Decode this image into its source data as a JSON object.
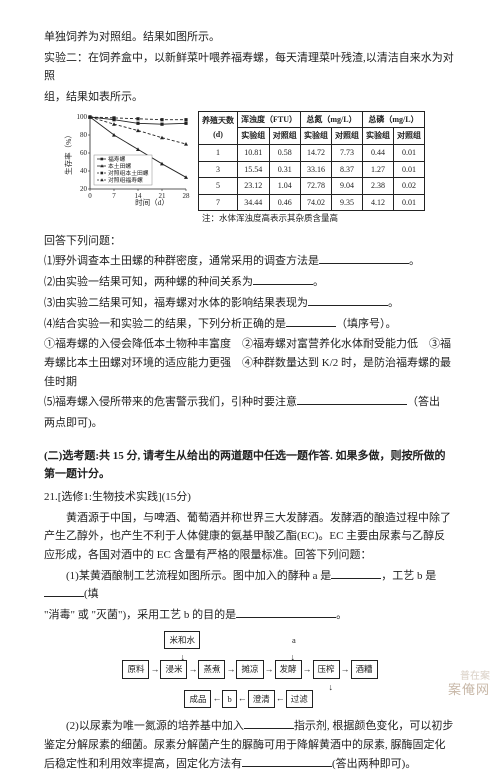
{
  "intro": {
    "line1": "单独饲养为对照组。结果如图所示。",
    "line2a": "实验二：在饲养盒中，以新鲜菜叶喂养福寿螺，每天清理菜叶残渣,以清洁自来水为对照",
    "line2b": "组，结果如表所示。"
  },
  "chart": {
    "ylabel": "生存率（%）",
    "xlabel": "时间（d）",
    "xticks": [
      "0",
      "7",
      "14",
      "21",
      "28"
    ],
    "yticks": [
      "20",
      "40",
      "60",
      "80",
      "100"
    ],
    "legend": [
      "福寿螺",
      "本土田螺",
      "对照组本土田螺",
      "对照组福寿螺"
    ],
    "series": [
      {
        "pts": [
          [
            0,
            100
          ],
          [
            7,
            97
          ],
          [
            14,
            93
          ],
          [
            21,
            92
          ],
          [
            28,
            93
          ]
        ],
        "marker": "sq",
        "dash": false
      },
      {
        "pts": [
          [
            0,
            100
          ],
          [
            7,
            80
          ],
          [
            14,
            64
          ],
          [
            21,
            48
          ],
          [
            28,
            33
          ]
        ],
        "marker": "tri",
        "dash": false
      },
      {
        "pts": [
          [
            0,
            100
          ],
          [
            7,
            92
          ],
          [
            14,
            85
          ],
          [
            21,
            77
          ],
          [
            28,
            70
          ]
        ],
        "marker": "tri",
        "dash": true
      },
      {
        "pts": [
          [
            0,
            100
          ],
          [
            7,
            99
          ],
          [
            14,
            98
          ],
          [
            21,
            97
          ],
          [
            28,
            97
          ]
        ],
        "marker": "sq",
        "dash": true
      }
    ]
  },
  "table": {
    "head1": [
      "养殖天数",
      "浑浊度（FTU）",
      "总氮（mg/L）",
      "总磷（mg/L）"
    ],
    "head2": [
      "(d)",
      "实验组",
      "对照组",
      "实验组",
      "对照组",
      "实验组",
      "对照组"
    ],
    "rows": [
      [
        "1",
        "10.81",
        "0.58",
        "14.72",
        "7.73",
        "0.44",
        "0.01"
      ],
      [
        "3",
        "15.54",
        "0.31",
        "33.16",
        "8.37",
        "1.27",
        "0.01"
      ],
      [
        "5",
        "23.12",
        "1.04",
        "72.78",
        "9.04",
        "2.38",
        "0.02"
      ],
      [
        "7",
        "34.44",
        "0.46",
        "74.02",
        "9.35",
        "4.12",
        "0.01"
      ]
    ],
    "note": "注：水体浑浊度高表示其杂质含量高"
  },
  "q": {
    "head": "回答下列问题：",
    "i1": "⑴野外调查本土田螺的种群密度，通常采用的调查方法是",
    "i1t": "。",
    "i2": "⑵由实验一结果可知，两种螺的种间关系为",
    "i2t": "。",
    "i3": "⑶由实验二结果可知，福寿螺对水体的影响结果表现为",
    "i3t": "。",
    "i4a": "⑷结合实验一和实验二的结果，下列分析正确的是",
    "i4b": "（填序号）。",
    "opts": "①福寿螺的入侵会降低本土物种丰富度　②福寿螺对富营养化水体耐受能力低　③福寿螺比本土田螺对环境的适应能力更强　④种群数量达到 K/2 时，是防治福寿螺的最佳时期",
    "i5a": "⑸福寿螺入侵所带来的危害警示我们，引种时要注意",
    "i5b": "（答出",
    "i5c": "两点即可)。"
  },
  "sec2": {
    "title": "(二)选考题:共 15 分, 请考生从给出的两道题中任选一题作答. 如果多做，则按所做的第一题计分。",
    "sub": "21.[选修1:生物技术实践](15分)",
    "p1": "黄酒源于中国，与啤酒、葡萄酒并称世界三大发酵酒。发酵酒的酿造过程中除了产生乙醇外，也产生不利于人体健康的氨基甲酸乙酯(EC)。EC 主要由尿素与乙醇反应形成，各国对酒中的 EC 含量有严格的限量标准。回答下列问题：",
    "q1a": "(1)某黄酒酿制工艺流程如图所示。图中加入的酵种 a 是",
    "q1b": "，工艺 b 是",
    "q1c": "(填",
    "q1d": "\"消毒\" 或 \"灭菌\")，采用工艺 b 的目的是",
    "q1e": "。"
  },
  "flow": {
    "top": [
      "米和水"
    ],
    "a": "a",
    "main": [
      "原料",
      "浸米",
      "蒸煮",
      "摊凉",
      "发酵",
      "压榨",
      "酒糟"
    ],
    "bot": [
      "成品",
      "b",
      "澄清",
      "过滤"
    ]
  },
  "q2": {
    "a": "(2)以尿素为唯一氮源的培养基中加入",
    "b": "指示剂, 根据颜色变化，可以初步鉴定分解尿素的细菌。尿素分解菌产生的脲酶可用于降解黄酒中的尿素, 脲酶固定化后稳定性和利用效率提高，固定化方法有",
    "c": "(答出两种即可)。"
  },
  "wm1": "案俺网",
  "wm2": "普在案"
}
